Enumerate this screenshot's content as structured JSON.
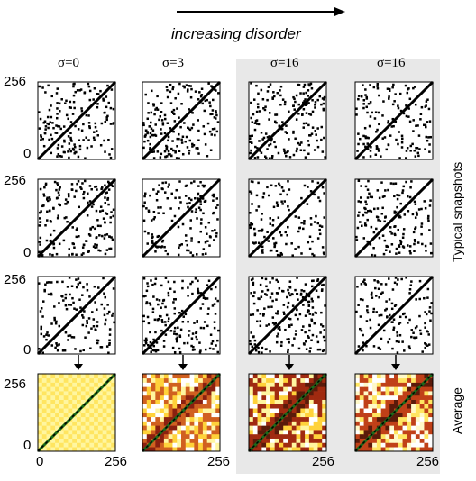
{
  "header": {
    "direction_label": "increasing disorder"
  },
  "columns": [
    {
      "sigma_label": "σ=0"
    },
    {
      "sigma_label": "σ=3"
    },
    {
      "sigma_label": "σ=16"
    },
    {
      "sigma_label": "σ=16"
    }
  ],
  "axis": {
    "max": "256",
    "min": "0"
  },
  "side_labels": {
    "snapshots": "Typical snapshots",
    "average": "Average"
  },
  "colors": {
    "shade": "#e8e8e8",
    "diag": "#000000",
    "heat_hi": "#5a1a0a",
    "heat_lo": "#fff6a0"
  },
  "icons": {
    "arrow": "arrow-right-icon",
    "down": "arrow-down-icon"
  }
}
